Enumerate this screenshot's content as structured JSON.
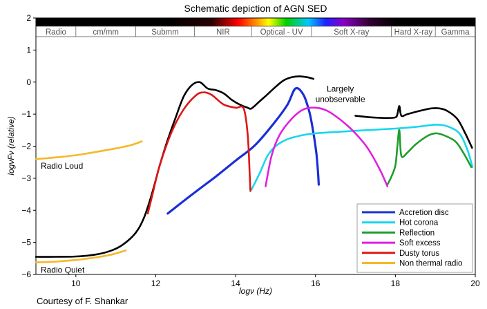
{
  "chart_data": {
    "type": "line",
    "title": "Schematic depiction of AGN SED",
    "xlabel": "logν (Hz)",
    "ylabel": "logνFν (relative)",
    "xlim": [
      9,
      20
    ],
    "ylim": [
      -6,
      2
    ],
    "xticks": [
      "10",
      "12",
      "14",
      "16",
      "18",
      "20"
    ],
    "yticks": [
      "−6",
      "−5",
      "−4",
      "−3",
      "−2",
      "−1",
      "0",
      "1",
      "2"
    ],
    "grid": false,
    "legend_position": "lower-right",
    "bands": [
      {
        "label": "Radio",
        "from": 9.0,
        "to": 10.0
      },
      {
        "label": "cm/mm",
        "from": 10.0,
        "to": 11.5
      },
      {
        "label": "Submm",
        "from": 11.5,
        "to": 12.97
      },
      {
        "label": "NIR",
        "from": 12.97,
        "to": 14.4
      },
      {
        "label": "Optical - UV",
        "from": 14.4,
        "to": 15.9
      },
      {
        "label": "Soft X-ray",
        "from": 15.9,
        "to": 17.9
      },
      {
        "label": "Hard X-ray",
        "from": 17.9,
        "to": 19.0
      },
      {
        "label": "Gamma",
        "from": 19.0,
        "to": 20.0
      }
    ],
    "series": [
      {
        "name": "Accretion disc",
        "color": "#1a2fd6",
        "x": [
          12.3,
          13.0,
          13.5,
          14.0,
          14.5,
          15.0,
          15.3,
          15.5,
          15.7,
          15.85,
          15.95,
          16.02,
          16.05,
          16.07,
          16.08
        ],
        "y": [
          -4.1,
          -3.42,
          -2.95,
          -2.45,
          -1.95,
          -1.22,
          -0.7,
          -0.2,
          -0.4,
          -0.95,
          -1.6,
          -2.2,
          -2.6,
          -2.95,
          -3.2
        ]
      },
      {
        "name": "Hot corona",
        "color": "#17d6ef",
        "x": [
          14.4,
          14.6,
          14.8,
          15.0,
          15.3,
          15.7,
          16.0,
          17.0,
          18.0,
          18.5,
          19.0,
          19.3,
          19.6,
          19.8,
          19.93
        ],
        "y": [
          -3.35,
          -2.85,
          -2.3,
          -2.0,
          -1.78,
          -1.65,
          -1.6,
          -1.52,
          -1.45,
          -1.4,
          -1.33,
          -1.38,
          -1.6,
          -2.1,
          -2.65
        ]
      },
      {
        "name": "Reflection",
        "color": "#1e9e2c",
        "x": [
          17.8,
          17.9,
          18.0,
          18.05,
          18.1,
          18.15,
          18.3,
          18.5,
          18.8,
          19.0,
          19.2,
          19.5,
          19.7,
          19.9
        ],
        "y": [
          -3.2,
          -2.95,
          -2.6,
          -2.0,
          -1.5,
          -2.3,
          -2.2,
          -1.95,
          -1.68,
          -1.6,
          -1.65,
          -1.85,
          -2.2,
          -2.65
        ]
      },
      {
        "name": "Soft excess",
        "color": "#e01fe0",
        "x": [
          14.75,
          14.9,
          15.1,
          15.4,
          15.7,
          16.0,
          16.3,
          16.7,
          17.0,
          17.3,
          17.6,
          17.8
        ],
        "y": [
          -3.25,
          -2.3,
          -1.65,
          -1.15,
          -0.85,
          -0.8,
          -0.9,
          -1.25,
          -1.6,
          -2.05,
          -2.7,
          -3.25
        ]
      },
      {
        "name": "Dusty torus",
        "color": "#e01414",
        "x": [
          11.8,
          11.9,
          12.1,
          12.4,
          12.7,
          13.0,
          13.2,
          13.4,
          13.7,
          14.0,
          14.2,
          14.3,
          14.35,
          14.37
        ],
        "y": [
          -4.1,
          -3.6,
          -2.6,
          -1.55,
          -0.85,
          -0.42,
          -0.32,
          -0.4,
          -0.7,
          -0.8,
          -0.82,
          -1.6,
          -2.8,
          -3.4
        ]
      },
      {
        "name": "Non thermal radio",
        "color": "#f4b829",
        "x": [
          9.0,
          9.5,
          10.0,
          10.5,
          11.0,
          11.4,
          11.65
        ],
        "y": [
          -2.4,
          -2.35,
          -2.28,
          -2.18,
          -2.07,
          -1.96,
          -1.85
        ]
      },
      {
        "name": "Non thermal radio",
        "color": "#f4b829",
        "x": [
          9.0,
          9.5,
          10.0,
          10.5,
          10.9,
          11.25
        ],
        "y": [
          -5.62,
          -5.6,
          -5.55,
          -5.47,
          -5.38,
          -5.25
        ]
      },
      {
        "name": "",
        "color": "#000000",
        "x": [
          9.0,
          9.5,
          10.0,
          10.5,
          10.9,
          11.2,
          11.5,
          11.7,
          11.9,
          12.1,
          12.3,
          12.5,
          12.7,
          12.9,
          13.1,
          13.3,
          13.5,
          13.7,
          13.9,
          14.1,
          14.3,
          14.4,
          14.6,
          14.8,
          15.0,
          15.2,
          15.4,
          15.6,
          15.8,
          15.95
        ],
        "y": [
          -5.45,
          -5.45,
          -5.44,
          -5.38,
          -5.25,
          -5.05,
          -4.7,
          -4.25,
          -3.5,
          -2.6,
          -1.8,
          -1.1,
          -0.45,
          -0.1,
          0.0,
          -0.2,
          -0.25,
          -0.35,
          -0.55,
          -0.7,
          -0.8,
          -0.82,
          -0.6,
          -0.38,
          -0.15,
          0.05,
          0.15,
          0.18,
          0.15,
          0.1
        ]
      },
      {
        "name": "",
        "color": "#000000",
        "x": [
          17.0,
          17.4,
          17.8,
          18.0,
          18.05,
          18.1,
          18.15,
          18.3,
          18.6,
          18.9,
          19.1,
          19.3,
          19.55,
          19.75,
          19.92
        ],
        "y": [
          -1.05,
          -1.1,
          -1.12,
          -1.1,
          -1.0,
          -0.75,
          -1.05,
          -1.0,
          -0.9,
          -0.82,
          -0.82,
          -0.9,
          -1.15,
          -1.6,
          -2.05
        ]
      }
    ],
    "annotations": [
      {
        "text": "Radio Loud",
        "x": 9.12,
        "y": -2.7
      },
      {
        "text": "Radio Quiet",
        "x": 9.12,
        "y": -5.95
      },
      {
        "text": "Largely",
        "x": 16.05,
        "y": -0.3
      },
      {
        "text": "unobservable",
        "x": 16.05,
        "y": -0.62
      }
    ]
  },
  "credit": "Courtesy of F. Shankar"
}
